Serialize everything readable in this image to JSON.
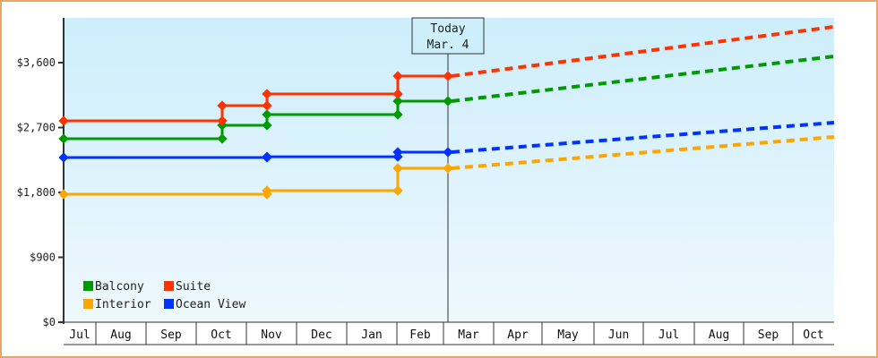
{
  "chart_data": {
    "type": "line",
    "title": "",
    "xlabel": "",
    "ylabel": "",
    "ylim": [
      0,
      4300
    ],
    "y_ticks": [
      "$0",
      "$900",
      "$1,800",
      "$2,700",
      "$3,600"
    ],
    "y_tick_values": [
      0,
      900,
      1800,
      2700,
      3600
    ],
    "x_ticks": [
      "Jul",
      "Aug",
      "Sep",
      "Oct",
      "Nov",
      "Dec",
      "Jan",
      "Feb",
      "Mar",
      "Apr",
      "May",
      "Jun",
      "Jul",
      "Aug",
      "Sep",
      "Oct"
    ],
    "grid": false,
    "legend_position": "lower-left inside",
    "annotation": {
      "line1": "Today",
      "line2": "Mar. 4"
    },
    "series": [
      {
        "name": "Balcony",
        "color": "#009900",
        "style": "step, dashed projection",
        "points": [
          [
            "Jul 1",
            2545
          ],
          [
            "Oct 5",
            2545
          ],
          [
            "Oct 5",
            2731
          ],
          [
            "Nov 1",
            2731
          ],
          [
            "Nov 1",
            2880
          ],
          [
            "Feb 1",
            2880
          ],
          [
            "Feb 1",
            3066
          ],
          [
            "Mar 4",
            3066
          ]
        ],
        "projection": [
          [
            "Mar 4",
            3066
          ],
          [
            "Oct end",
            3687
          ]
        ]
      },
      {
        "name": "Suite",
        "color": "#ff3300",
        "style": "step, dashed projection",
        "points": [
          [
            "Jul 1",
            2793
          ],
          [
            "Oct 5",
            2793
          ],
          [
            "Oct 5",
            3004
          ],
          [
            "Nov 1",
            3004
          ],
          [
            "Nov 1",
            3166
          ],
          [
            "Feb 1",
            3166
          ],
          [
            "Feb 1",
            3414
          ],
          [
            "Mar 4",
            3414
          ]
        ],
        "projection": [
          [
            "Mar 4",
            3414
          ],
          [
            "Oct end",
            4097
          ]
        ]
      },
      {
        "name": "Interior",
        "color": "#ffa500",
        "style": "step, dashed projection",
        "points": [
          [
            "Jul 1",
            1775
          ],
          [
            "Nov 1",
            1775
          ],
          [
            "Nov 1",
            1825
          ],
          [
            "Feb 1",
            1825
          ],
          [
            "Feb 1",
            2135
          ],
          [
            "Mar 4",
            2135
          ]
        ],
        "projection": [
          [
            "Mar 4",
            2135
          ],
          [
            "Oct end",
            2570
          ]
        ]
      },
      {
        "name": "Ocean View",
        "color": "#0033ff",
        "style": "step, dashed projection",
        "points": [
          [
            "Jul 1",
            2284
          ],
          [
            "Nov 1",
            2284
          ],
          [
            "Nov 1",
            2295
          ],
          [
            "Feb 1",
            2295
          ],
          [
            "Feb 1",
            2359
          ],
          [
            "Mar 4",
            2359
          ]
        ],
        "projection": [
          [
            "Mar 4",
            2359
          ],
          [
            "Oct end",
            2768
          ]
        ]
      }
    ]
  },
  "legend": [
    {
      "label": "Balcony",
      "color": "#009900"
    },
    {
      "label": "Suite",
      "color": "#ff3300"
    },
    {
      "label": "Interior",
      "color": "#ffa500"
    },
    {
      "label": "Ocean View",
      "color": "#0033ff"
    }
  ],
  "today_box": {
    "line1": "Today",
    "line2": "Mar. 4"
  },
  "colors": {
    "frame_border": "#e8a766",
    "plot_bg_top": "#cdeefb",
    "plot_bg_bottom": "#eef8fd",
    "axis": "#333333"
  }
}
